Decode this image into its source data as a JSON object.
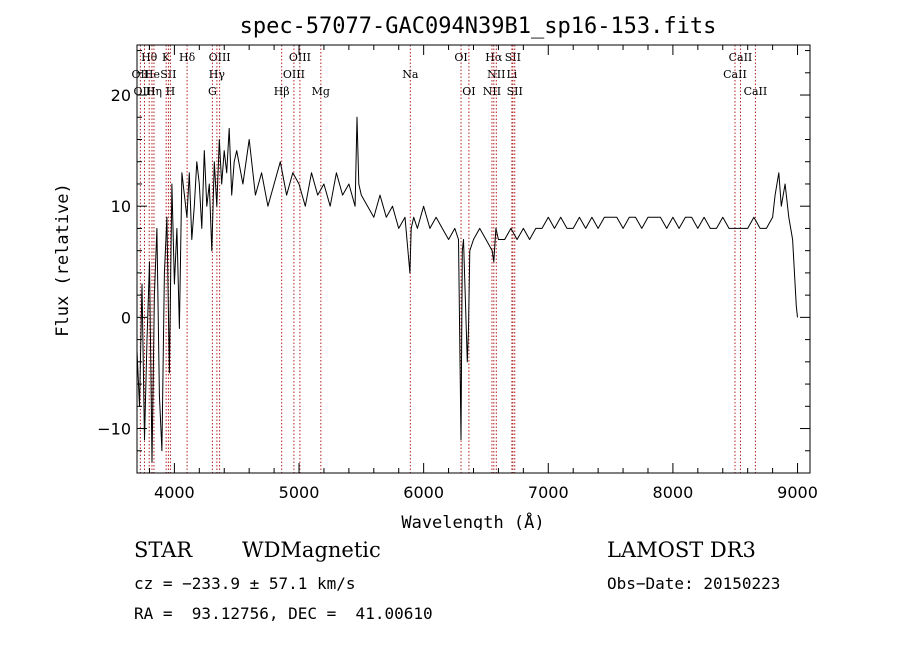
{
  "chart_data": {
    "type": "line",
    "title": "spec-57077-GAC094N39B1_sp16-153.fits",
    "xlabel": "Wavelength (Å)",
    "ylabel": "Flux (relative)",
    "xlim": [
      3700,
      9100
    ],
    "ylim": [
      -14,
      24.5
    ],
    "xticks": [
      4000,
      5000,
      6000,
      7000,
      8000,
      9000
    ],
    "xtick_labels": [
      "4000",
      "5000",
      "6000",
      "7000",
      "8000",
      "9000"
    ],
    "yticks": [
      -10,
      0,
      10,
      20
    ],
    "ytick_labels": [
      "−10",
      "0",
      "10",
      "20"
    ],
    "series": [
      {
        "name": "flux",
        "x": [
          3700,
          3720,
          3740,
          3760,
          3780,
          3800,
          3820,
          3840,
          3860,
          3880,
          3900,
          3920,
          3940,
          3960,
          3980,
          4000,
          4020,
          4040,
          4060,
          4080,
          4100,
          4120,
          4140,
          4160,
          4180,
          4200,
          4220,
          4240,
          4260,
          4280,
          4300,
          4320,
          4340,
          4360,
          4380,
          4400,
          4420,
          4440,
          4460,
          4480,
          4500,
          4550,
          4600,
          4650,
          4700,
          4750,
          4800,
          4850,
          4900,
          4950,
          5000,
          5050,
          5100,
          5150,
          5200,
          5250,
          5300,
          5350,
          5400,
          5450,
          5465,
          5480,
          5500,
          5550,
          5600,
          5650,
          5700,
          5750,
          5800,
          5850,
          5890,
          5900,
          5920,
          5950,
          6000,
          6050,
          6100,
          6150,
          6200,
          6250,
          6280,
          6300,
          6310,
          6320,
          6350,
          6360,
          6370,
          6400,
          6450,
          6500,
          6550,
          6563,
          6580,
          6600,
          6650,
          6700,
          6750,
          6800,
          6850,
          6900,
          6950,
          7000,
          7050,
          7100,
          7150,
          7200,
          7250,
          7300,
          7350,
          7400,
          7450,
          7500,
          7550,
          7600,
          7650,
          7700,
          7750,
          7800,
          7850,
          7900,
          7950,
          8000,
          8050,
          8100,
          8150,
          8200,
          8250,
          8300,
          8350,
          8400,
          8450,
          8500,
          8550,
          8600,
          8650,
          8700,
          8750,
          8800,
          8820,
          8850,
          8870,
          8900,
          8930,
          8960,
          8990,
          9000
        ],
        "y": [
          -3,
          -8,
          3,
          -11,
          -2,
          5,
          -13,
          2,
          8,
          -7,
          -12,
          4,
          9,
          -5,
          12,
          3,
          8,
          -1,
          13,
          11,
          9,
          13,
          7,
          10,
          14,
          12,
          8,
          15,
          10,
          12,
          6,
          14,
          10,
          16,
          12,
          15,
          13,
          17,
          11,
          14,
          15,
          12,
          16,
          11,
          13,
          10,
          12,
          14,
          11,
          13,
          12,
          10,
          13,
          11,
          12,
          10,
          13,
          11,
          12,
          10,
          18,
          12,
          11,
          10,
          9,
          11,
          9,
          10,
          8,
          9,
          4,
          8,
          9,
          8,
          10,
          8,
          9,
          8,
          7,
          8,
          7,
          -11,
          6,
          7,
          -4,
          -1,
          6,
          7,
          8,
          7,
          6,
          5,
          8,
          7,
          7,
          8,
          7,
          8,
          7,
          8,
          8,
          9,
          8,
          9,
          8,
          8,
          9,
          8,
          9,
          8,
          9,
          9,
          9,
          8,
          9,
          9,
          8,
          9,
          9,
          9,
          8,
          9,
          8,
          9,
          9,
          8,
          9,
          8,
          8,
          9,
          8,
          8,
          8,
          8,
          9,
          8,
          8,
          9,
          11,
          13,
          10,
          12,
          9,
          7,
          1,
          0
        ]
      }
    ],
    "line_marks": [
      {
        "label": "Hθ",
        "wave": 3798,
        "row": 1
      },
      {
        "label": "OII",
        "wave": 3727,
        "row": 2
      },
      {
        "label": "OIII",
        "wave": 3760,
        "row": 3
      },
      {
        "label": "He",
        "wave": 3820,
        "row": 2
      },
      {
        "label": "Hη",
        "wave": 3836,
        "row": 3
      },
      {
        "label": "K",
        "wave": 3934,
        "row": 1
      },
      {
        "label": "SII",
        "wave": 3952,
        "row": 2
      },
      {
        "label": "H",
        "wave": 3968,
        "row": 3
      },
      {
        "label": "Hδ",
        "wave": 4102,
        "row": 1
      },
      {
        "label": "OIII",
        "wave": 4363,
        "row": 1
      },
      {
        "label": "Hγ",
        "wave": 4341,
        "row": 2
      },
      {
        "label": "G",
        "wave": 4305,
        "row": 3
      },
      {
        "label": "Hβ",
        "wave": 4861,
        "row": 3
      },
      {
        "label": "OIII",
        "wave": 5007,
        "row": 1
      },
      {
        "label": "OIII",
        "wave": 4959,
        "row": 2
      },
      {
        "label": "Mg",
        "wave": 5175,
        "row": 3
      },
      {
        "label": "Na",
        "wave": 5893,
        "row": 2
      },
      {
        "label": "OI",
        "wave": 6300,
        "row": 1
      },
      {
        "label": "OI",
        "wave": 6363,
        "row": 3
      },
      {
        "label": "Hα",
        "wave": 6563,
        "row": 1
      },
      {
        "label": "SII",
        "wave": 6716,
        "row": 1
      },
      {
        "label": "NII",
        "wave": 6583,
        "row": 2
      },
      {
        "label": "Li",
        "wave": 6708,
        "row": 2
      },
      {
        "label": "NII",
        "wave": 6548,
        "row": 3
      },
      {
        "label": "SII",
        "wave": 6731,
        "row": 3
      },
      {
        "label": "CaII",
        "wave": 8542,
        "row": 1
      },
      {
        "label": "CaII",
        "wave": 8498,
        "row": 2
      },
      {
        "label": "CaII",
        "wave": 8662,
        "row": 3
      }
    ]
  },
  "info": {
    "object_class": "STAR",
    "subclass": "WDMagnetic",
    "survey": "LAMOST DR3",
    "cz": "cz = −233.9 ± 57.1 km/s",
    "obs_date": "Obs−Date: 20150223",
    "radec": "RA =  93.12756, DEC =  41.00610"
  },
  "colors": {
    "line_mark": "#b22222",
    "spectrum": "#000000",
    "axes": "#000000"
  }
}
